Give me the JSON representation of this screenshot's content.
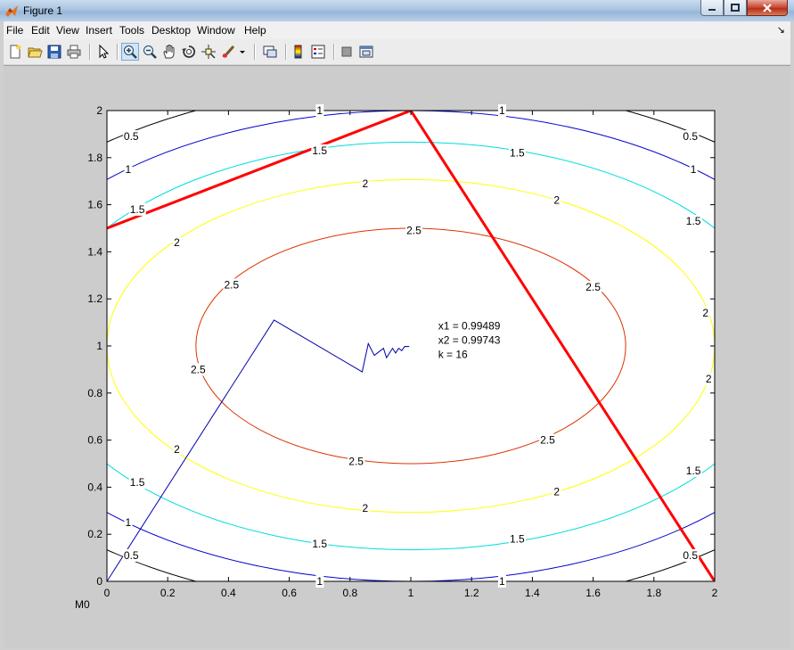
{
  "window": {
    "title": "Figure 1",
    "controls": {
      "minimize": "minimize",
      "maximize": "maximize",
      "close": "close"
    }
  },
  "menu": {
    "items": [
      "File",
      "Edit",
      "View",
      "Insert",
      "Tools",
      "Desktop",
      "Window",
      "Help"
    ],
    "overflow_arrow": "↘"
  },
  "toolbar": {
    "items": [
      "new-figure-icon",
      "open-file-icon",
      "save-icon",
      "print-icon",
      "edit-plot-arrow-icon",
      "zoom-in-icon",
      "zoom-out-icon",
      "pan-hand-icon",
      "rotate-3d-icon",
      "data-cursor-icon",
      "brush-icon",
      "brush-dropdown-icon",
      "link-plot-icon",
      "colorbar-icon",
      "legend-icon",
      "hide-plot-tools-icon",
      "show-plot-tools-icon"
    ],
    "pressed": "zoom-in-icon"
  },
  "chart_data": {
    "type": "contour",
    "xlim": [
      0,
      2
    ],
    "ylim": [
      0,
      2
    ],
    "x_ticks": [
      "0",
      "0.2",
      "0.4",
      "0.6",
      "0.8",
      "1",
      "1.2",
      "1.4",
      "1.6",
      "1.8",
      "2"
    ],
    "y_ticks": [
      "0",
      "0.2",
      "0.4",
      "0.6",
      "0.8",
      "1",
      "1.2",
      "1.4",
      "1.6",
      "1.8",
      "2"
    ],
    "corner_label": "M0",
    "contour_function": "3 - (x-1)^2 - 2*(y-1)^2",
    "levels": [
      {
        "value": 0.5,
        "color": "#000000",
        "labels": [
          [
            0.08,
            1.89
          ],
          [
            1.92,
            1.89
          ],
          [
            0.08,
            0.11
          ],
          [
            1.92,
            0.11
          ]
        ]
      },
      {
        "value": 1,
        "color": "#0000cc",
        "labels": [
          [
            0.7,
            2.0
          ],
          [
            1.3,
            2.0
          ],
          [
            0.07,
            1.75
          ],
          [
            1.93,
            1.75
          ],
          [
            0.07,
            0.25
          ],
          [
            0.7,
            0.0
          ],
          [
            1.3,
            0.0
          ]
        ]
      },
      {
        "value": 1.5,
        "color": "#00dddd",
        "labels": [
          [
            0.7,
            1.83
          ],
          [
            1.35,
            1.82
          ],
          [
            0.1,
            1.58
          ],
          [
            1.93,
            1.53
          ],
          [
            0.1,
            0.42
          ],
          [
            0.7,
            0.16
          ],
          [
            1.35,
            0.18
          ],
          [
            1.93,
            0.47
          ]
        ]
      },
      {
        "value": 2,
        "color": "#ffff00",
        "labels": [
          [
            0.85,
            1.69
          ],
          [
            1.48,
            1.62
          ],
          [
            0.23,
            1.44
          ],
          [
            1.97,
            1.14
          ],
          [
            1.98,
            0.86
          ],
          [
            0.23,
            0.56
          ],
          [
            0.85,
            0.31
          ],
          [
            1.48,
            0.38
          ]
        ]
      },
      {
        "value": 2.5,
        "color": "#dd3300",
        "labels": [
          [
            1.01,
            1.49
          ],
          [
            0.41,
            1.26
          ],
          [
            1.6,
            1.25
          ],
          [
            0.3,
            0.9
          ],
          [
            0.82,
            0.51
          ],
          [
            1.45,
            0.6
          ]
        ]
      }
    ],
    "series": [
      {
        "name": "",
        "color": "#ff0000",
        "width": 3,
        "points": [
          [
            0,
            1.5
          ],
          [
            1,
            2
          ],
          [
            2,
            0
          ]
        ]
      },
      {
        "name": "",
        "color": "#0000aa",
        "width": 1,
        "points": [
          [
            0,
            0
          ],
          [
            0.55,
            1.11
          ],
          [
            0.84,
            0.89
          ],
          [
            0.86,
            1.01
          ],
          [
            0.88,
            0.96
          ],
          [
            0.91,
            0.99
          ],
          [
            0.92,
            0.95
          ],
          [
            0.94,
            0.99
          ],
          [
            0.95,
            0.97
          ],
          [
            0.96,
            0.99
          ],
          [
            0.97,
            0.98
          ],
          [
            0.98,
            0.998
          ],
          [
            0.99489,
            0.99743
          ]
        ]
      }
    ],
    "annotation": {
      "x": 1.09,
      "y": 1.07,
      "lines": [
        "x1 = 0.99489",
        "x2 = 0.99743",
        "k = 16"
      ]
    }
  }
}
